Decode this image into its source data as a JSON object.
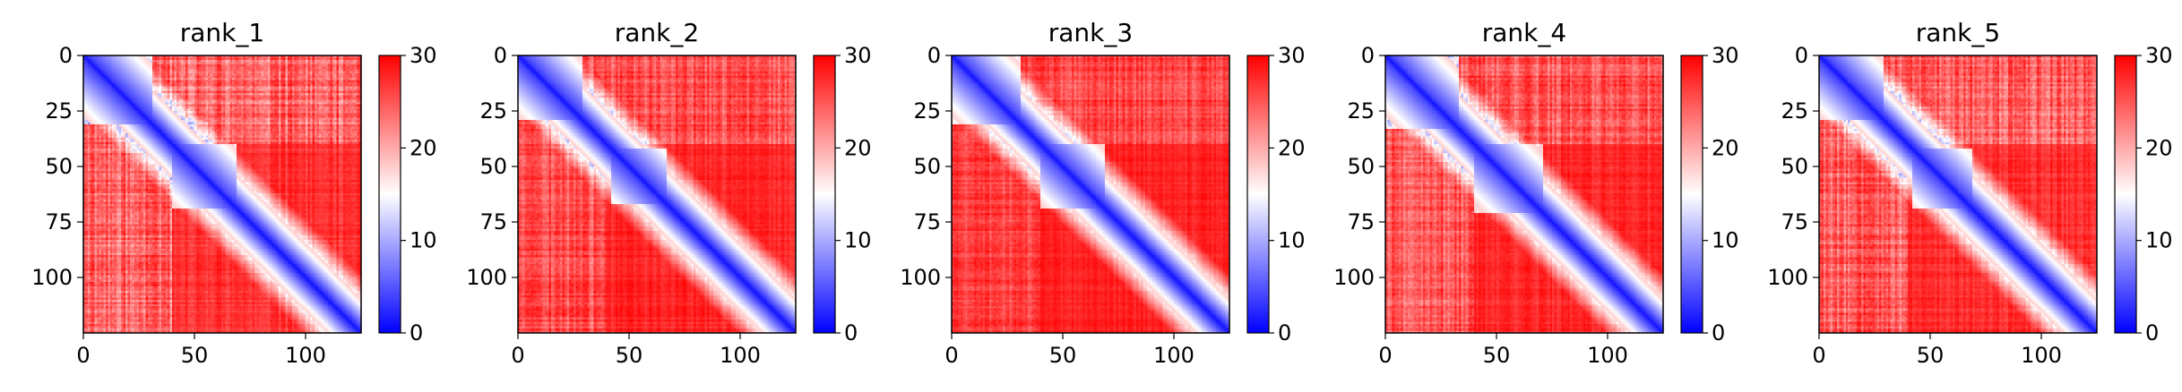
{
  "figure": {
    "background": "#ffffff"
  },
  "chart_data": [
    {
      "type": "heatmap",
      "title": "rank_1",
      "n": 125,
      "x_ticks": [
        0,
        50,
        100
      ],
      "y_ticks": [
        0,
        25,
        50,
        75,
        100
      ],
      "colorbar": {
        "min": 0,
        "max": 30,
        "ticks": [
          0,
          10,
          20,
          30
        ],
        "colormap": "bwr"
      },
      "pattern": {
        "diag_blocks": [
          [
            0,
            30,
            6
          ],
          [
            40,
            68,
            9
          ]
        ],
        "base": 30,
        "off_diag_texture": 0.18,
        "seed": 11
      }
    },
    {
      "type": "heatmap",
      "title": "rank_2",
      "n": 125,
      "x_ticks": [
        0,
        50,
        100
      ],
      "y_ticks": [
        0,
        25,
        50,
        75,
        100
      ],
      "colorbar": {
        "min": 0,
        "max": 30,
        "ticks": [
          0,
          10,
          20,
          30
        ],
        "colormap": "bwr"
      },
      "pattern": {
        "diag_blocks": [
          [
            0,
            28,
            7
          ],
          [
            42,
            66,
            8
          ]
        ],
        "base": 30,
        "off_diag_texture": 0.14,
        "seed": 23
      }
    },
    {
      "type": "heatmap",
      "title": "rank_3",
      "n": 125,
      "x_ticks": [
        0,
        50,
        100
      ],
      "y_ticks": [
        0,
        25,
        50,
        75,
        100
      ],
      "colorbar": {
        "min": 0,
        "max": 30,
        "ticks": [
          0,
          10,
          20,
          30
        ],
        "colormap": "bwr"
      },
      "pattern": {
        "diag_blocks": [
          [
            0,
            30,
            8
          ],
          [
            40,
            68,
            10
          ]
        ],
        "base": 30,
        "off_diag_texture": 0.12,
        "seed": 37
      }
    },
    {
      "type": "heatmap",
      "title": "rank_4",
      "n": 125,
      "x_ticks": [
        0,
        50,
        100
      ],
      "y_ticks": [
        0,
        25,
        50,
        75,
        100
      ],
      "colorbar": {
        "min": 0,
        "max": 30,
        "ticks": [
          0,
          10,
          20,
          30
        ],
        "colormap": "bwr"
      },
      "pattern": {
        "diag_blocks": [
          [
            0,
            32,
            9
          ],
          [
            40,
            70,
            11
          ]
        ],
        "base": 30,
        "off_diag_texture": 0.15,
        "seed": 41
      }
    },
    {
      "type": "heatmap",
      "title": "rank_5",
      "n": 125,
      "x_ticks": [
        0,
        50,
        100
      ],
      "y_ticks": [
        0,
        25,
        50,
        75,
        100
      ],
      "colorbar": {
        "min": 0,
        "max": 30,
        "ticks": [
          0,
          10,
          20,
          30
        ],
        "colormap": "bwr"
      },
      "pattern": {
        "diag_blocks": [
          [
            0,
            28,
            7
          ],
          [
            42,
            68,
            9
          ]
        ],
        "base": 30,
        "off_diag_texture": 0.17,
        "seed": 53
      }
    }
  ]
}
